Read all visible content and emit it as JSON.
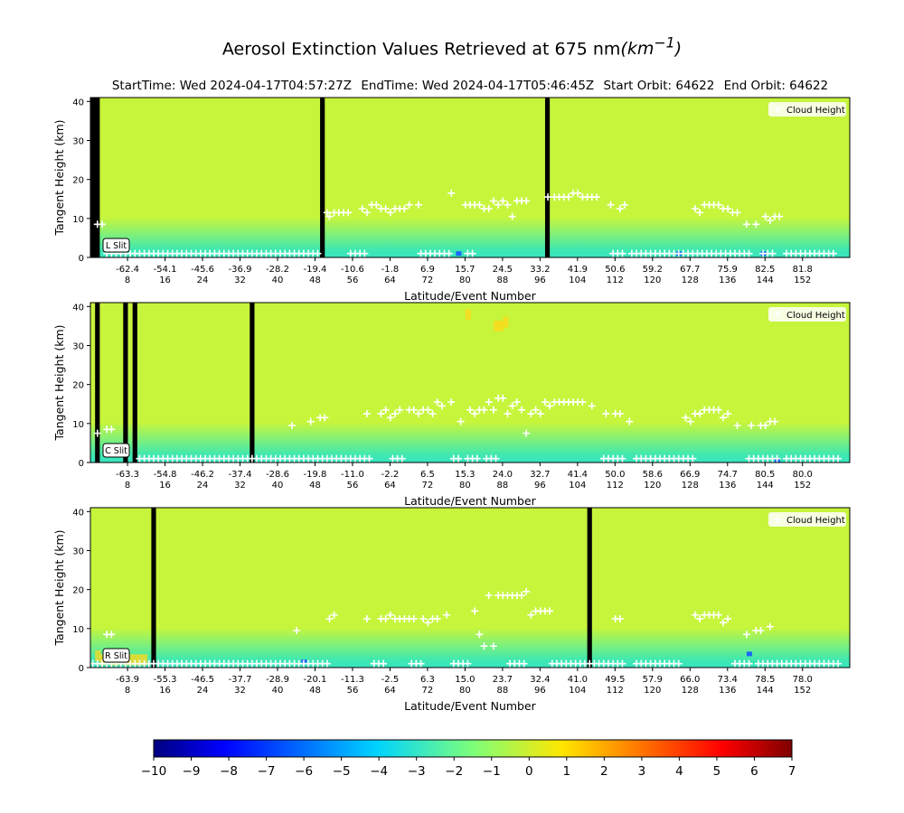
{
  "header": {
    "title": "Aerosol Extinction Values Retrieved at 675 nm",
    "title_unit": "(km",
    "title_unit_exp": "−1",
    "title_unit_close": ")",
    "start_time": "StartTime: Wed 2024-04-17T04:57:27Z",
    "end_time": "EndTime: Wed 2024-04-17T05:46:45Z",
    "start_orbit": "Start Orbit: 64622",
    "end_orbit": "End Orbit: 64622"
  },
  "colors": {
    "background_field": "#c6f53c",
    "lower_layer_light": "#7df07c",
    "lower_layer_mid": "#40e8b0",
    "dropout_bar": "#000000",
    "cloud_marker": "#ffffff",
    "low_blue_pixel": "#1a66ff",
    "warm_region": "#ffd81a"
  },
  "chart_data": [
    {
      "type": "heatmap",
      "panel_label": "L Slit",
      "ylabel": "Tangent Height (km)",
      "xlabel": "Latitude/Event Number",
      "ylim": [
        0,
        41
      ],
      "yticks": [
        "0",
        "10",
        "20",
        "30",
        "40"
      ],
      "event_range": [
        0,
        162
      ],
      "x_tick_events": [
        8,
        16,
        24,
        32,
        40,
        48,
        56,
        64,
        72,
        80,
        88,
        96,
        104,
        112,
        120,
        128,
        136,
        144,
        152
      ],
      "x_tick_lats": [
        "-62.4",
        "-54.1",
        "-45.6",
        "-36.9",
        "-28.2",
        "-19.4",
        "-10.6",
        "-1.8",
        "6.9",
        "15.7",
        "24.5",
        "33.2",
        "41.9",
        "50.6",
        "59.2",
        "67.7",
        "75.9",
        "82.5",
        "81.8"
      ],
      "legend": {
        "label": "Cloud Height",
        "position": "top-right"
      },
      "missing_events": [
        [
          0,
          2
        ],
        [
          49,
          50
        ],
        [
          97,
          98
        ]
      ],
      "cloud_heights_km": [
        [
          1.5,
          8.5
        ],
        [
          2.5,
          8.5
        ],
        [
          50.5,
          11.5
        ],
        [
          51,
          10.5
        ],
        [
          52,
          11.5
        ],
        [
          53,
          11.5
        ],
        [
          54,
          11.5
        ],
        [
          55,
          11.5
        ],
        [
          58,
          12.5
        ],
        [
          59,
          11.5
        ],
        [
          60,
          13.5
        ],
        [
          61,
          13.5
        ],
        [
          62,
          12.5
        ],
        [
          63,
          12.5
        ],
        [
          64,
          11.5
        ],
        [
          65,
          12.5
        ],
        [
          66,
          12.5
        ],
        [
          67,
          12.5
        ],
        [
          68,
          13.5
        ],
        [
          70,
          13.5
        ],
        [
          77,
          16.5
        ],
        [
          80,
          13.5
        ],
        [
          81,
          13.5
        ],
        [
          82,
          13.5
        ],
        [
          83,
          13.5
        ],
        [
          84,
          12.5
        ],
        [
          85,
          12.5
        ],
        [
          86,
          14.5
        ],
        [
          87,
          13.5
        ],
        [
          88,
          14.5
        ],
        [
          89,
          13.5
        ],
        [
          90,
          10.5
        ],
        [
          91,
          14.5
        ],
        [
          92,
          14.5
        ],
        [
          93,
          14.5
        ],
        [
          97.6,
          15.5
        ],
        [
          99,
          15.5
        ],
        [
          100,
          15.5
        ],
        [
          101,
          15.5
        ],
        [
          102,
          15.5
        ],
        [
          103,
          16.5
        ],
        [
          104,
          16.5
        ],
        [
          105,
          15.5
        ],
        [
          106,
          15.5
        ],
        [
          107,
          15.5
        ],
        [
          108,
          15.5
        ],
        [
          111,
          13.5
        ],
        [
          113,
          12.5
        ],
        [
          114,
          13.5
        ],
        [
          129,
          12.5
        ],
        [
          130,
          11.5
        ],
        [
          131,
          13.5
        ],
        [
          132,
          13.5
        ],
        [
          133,
          13.5
        ],
        [
          134,
          13.5
        ],
        [
          135,
          12.5
        ],
        [
          136,
          12.5
        ],
        [
          137,
          11.5
        ],
        [
          138,
          11.5
        ],
        [
          140,
          8.5
        ],
        [
          142,
          8.5
        ],
        [
          144,
          10.5
        ],
        [
          145,
          9.5
        ],
        [
          146,
          10.5
        ],
        [
          147,
          10.5
        ]
      ],
      "low_cloud_events": [
        [
          3,
          48
        ],
        [
          55,
          58
        ],
        [
          70,
          76
        ],
        [
          80,
          81
        ],
        [
          111,
          113
        ],
        [
          115,
          140
        ],
        [
          143,
          145
        ],
        [
          148,
          158
        ]
      ],
      "low_cloud_height_km": 1,
      "blue_pixels": [
        [
          78,
          1
        ],
        [
          125,
          1
        ],
        [
          143,
          1
        ]
      ],
      "warm_pixels": []
    },
    {
      "type": "heatmap",
      "panel_label": "C Slit",
      "ylabel": "Tangent Height (km)",
      "xlabel": "Latitude/Event Number",
      "ylim": [
        0,
        41
      ],
      "yticks": [
        "0",
        "10",
        "20",
        "30",
        "40"
      ],
      "event_range": [
        0,
        162
      ],
      "x_tick_events": [
        8,
        16,
        24,
        32,
        40,
        48,
        56,
        64,
        72,
        80,
        88,
        96,
        104,
        112,
        120,
        128,
        136,
        144,
        152
      ],
      "x_tick_lats": [
        "-63.3",
        "-54.8",
        "-46.2",
        "-37.4",
        "-28.6",
        "-19.8",
        "-11.0",
        "-2.2",
        "6.5",
        "15.3",
        "24.0",
        "32.7",
        "41.4",
        "50.0",
        "58.6",
        "66.9",
        "74.7",
        "80.5",
        "80.0"
      ],
      "legend": {
        "label": "Cloud Height",
        "position": "top-right"
      },
      "missing_events": [
        [
          1,
          2
        ],
        [
          7,
          8
        ],
        [
          9,
          10
        ],
        [
          34,
          35
        ]
      ],
      "cloud_heights_km": [
        [
          1.5,
          7.5
        ],
        [
          3.5,
          8.5
        ],
        [
          4.5,
          8.5
        ],
        [
          43,
          9.5
        ],
        [
          47,
          10.5
        ],
        [
          49,
          11.5
        ],
        [
          50,
          11.5
        ],
        [
          59,
          12.5
        ],
        [
          62,
          12.5
        ],
        [
          63,
          13.5
        ],
        [
          64,
          11.5
        ],
        [
          65,
          12.5
        ],
        [
          66,
          13.5
        ],
        [
          68,
          13.5
        ],
        [
          69,
          13.5
        ],
        [
          70,
          12.5
        ],
        [
          71,
          13.5
        ],
        [
          72,
          13.5
        ],
        [
          73,
          12.5
        ],
        [
          74,
          15.5
        ],
        [
          75,
          14.5
        ],
        [
          77,
          15.5
        ],
        [
          79,
          10.5
        ],
        [
          81,
          13.5
        ],
        [
          82,
          12.5
        ],
        [
          83,
          13.5
        ],
        [
          84,
          13.5
        ],
        [
          85,
          15.5
        ],
        [
          86,
          13.5
        ],
        [
          87,
          16.5
        ],
        [
          88,
          16.5
        ],
        [
          89,
          12.5
        ],
        [
          90,
          14.5
        ],
        [
          91,
          15.5
        ],
        [
          92,
          13.5
        ],
        [
          93,
          7.5
        ],
        [
          94,
          12.5
        ],
        [
          95,
          13.5
        ],
        [
          96,
          12.5
        ],
        [
          97,
          15.5
        ],
        [
          98,
          14.5
        ],
        [
          99,
          15.5
        ],
        [
          100,
          15.5
        ],
        [
          101,
          15.5
        ],
        [
          102,
          15.5
        ],
        [
          103,
          15.5
        ],
        [
          104,
          15.5
        ],
        [
          105,
          15.5
        ],
        [
          107,
          14.5
        ],
        [
          110,
          12.5
        ],
        [
          112,
          12.5
        ],
        [
          113,
          12.5
        ],
        [
          115,
          10.5
        ],
        [
          127,
          11.5
        ],
        [
          128,
          10.5
        ],
        [
          129,
          12.5
        ],
        [
          130,
          12.5
        ],
        [
          131,
          13.5
        ],
        [
          132,
          13.5
        ],
        [
          133,
          13.5
        ],
        [
          134,
          13.5
        ],
        [
          135,
          11.5
        ],
        [
          136,
          12.5
        ],
        [
          138,
          9.5
        ],
        [
          141,
          9.5
        ],
        [
          143,
          9.5
        ],
        [
          144,
          9.5
        ],
        [
          145,
          10.5
        ],
        [
          146,
          10.5
        ]
      ],
      "low_cloud_events": [
        [
          10,
          34
        ],
        [
          35,
          59
        ],
        [
          64,
          66
        ],
        [
          77,
          78
        ],
        [
          80,
          82
        ],
        [
          84,
          86
        ],
        [
          109,
          113
        ],
        [
          116,
          128
        ],
        [
          140,
          146
        ],
        [
          148,
          159
        ]
      ],
      "low_cloud_height_km": 1,
      "blue_pixels": [
        [
          146,
          0.5
        ]
      ],
      "warm_pixels": [
        [
          86,
          35
        ],
        [
          87,
          35
        ],
        [
          88,
          36
        ],
        [
          80,
          38
        ]
      ]
    },
    {
      "type": "heatmap",
      "panel_label": "R Slit",
      "ylabel": "Tangent Height (km)",
      "xlabel": "Latitude/Event Number",
      "ylim": [
        0,
        41
      ],
      "yticks": [
        "0",
        "10",
        "20",
        "30",
        "40"
      ],
      "event_range": [
        0,
        162
      ],
      "x_tick_events": [
        8,
        16,
        24,
        32,
        40,
        48,
        56,
        64,
        72,
        80,
        88,
        96,
        104,
        112,
        120,
        128,
        136,
        144,
        152
      ],
      "x_tick_lats": [
        "-63.9",
        "-55.3",
        "-46.5",
        "-37.7",
        "-28.9",
        "-20.1",
        "-11.3",
        "-2.5",
        "6.3",
        "15.0",
        "23.7",
        "32.4",
        "41.0",
        "49.5",
        "57.9",
        "66.0",
        "73.4",
        "78.5",
        "78.0"
      ],
      "legend": {
        "label": "Cloud Height",
        "position": "top-right"
      },
      "missing_events": [
        [
          13,
          14
        ],
        [
          106,
          107
        ]
      ],
      "cloud_heights_km": [
        [
          3.5,
          8.5
        ],
        [
          4.5,
          8.5
        ],
        [
          44,
          9.5
        ],
        [
          51,
          12.5
        ],
        [
          52,
          13.5
        ],
        [
          59,
          12.5
        ],
        [
          62,
          12.5
        ],
        [
          63,
          12.5
        ],
        [
          64,
          13.5
        ],
        [
          65,
          12.5
        ],
        [
          66,
          12.5
        ],
        [
          67,
          12.5
        ],
        [
          68,
          12.5
        ],
        [
          69,
          12.5
        ],
        [
          71,
          12.5
        ],
        [
          72,
          11.5
        ],
        [
          73,
          12.5
        ],
        [
          74,
          12.5
        ],
        [
          76,
          13.5
        ],
        [
          82,
          14.5
        ],
        [
          83,
          8.5
        ],
        [
          84,
          5.5
        ],
        [
          85,
          18.5
        ],
        [
          86,
          5.5
        ],
        [
          87,
          18.5
        ],
        [
          88,
          18.5
        ],
        [
          89,
          18.5
        ],
        [
          90,
          18.5
        ],
        [
          91,
          18.5
        ],
        [
          92,
          18.5
        ],
        [
          93,
          19.5
        ],
        [
          94,
          13.5
        ],
        [
          95,
          14.5
        ],
        [
          96,
          14.5
        ],
        [
          97,
          14.5
        ],
        [
          98,
          14.5
        ],
        [
          112,
          12.5
        ],
        [
          113,
          12.5
        ],
        [
          129,
          13.5
        ],
        [
          130,
          12.5
        ],
        [
          131,
          13.5
        ],
        [
          132,
          13.5
        ],
        [
          133,
          13.5
        ],
        [
          134,
          13.5
        ],
        [
          135,
          11.5
        ],
        [
          136,
          12.5
        ],
        [
          140,
          8.5
        ],
        [
          142,
          9.5
        ],
        [
          143,
          9.5
        ],
        [
          145,
          10.5
        ]
      ],
      "low_cloud_events": [
        [
          0,
          4
        ],
        [
          5,
          13
        ],
        [
          14,
          44
        ],
        [
          45,
          50
        ],
        [
          60,
          62
        ],
        [
          68,
          70
        ],
        [
          77,
          80
        ],
        [
          89,
          92
        ],
        [
          98,
          113
        ],
        [
          116,
          125
        ],
        [
          137,
          140
        ],
        [
          142,
          159
        ]
      ],
      "low_cloud_height_km": 1,
      "blue_pixels": [
        [
          45,
          1.5
        ],
        [
          140,
          3.5
        ]
      ],
      "warm_pixels": [
        [
          1,
          3
        ],
        [
          2,
          2
        ],
        [
          3,
          3
        ],
        [
          4,
          2
        ],
        [
          5,
          2
        ],
        [
          6,
          3
        ],
        [
          7,
          2
        ],
        [
          8,
          2
        ],
        [
          9,
          2
        ],
        [
          10,
          2
        ],
        [
          11,
          2
        ]
      ]
    }
  ],
  "colorbar": {
    "ticks": [
      "−10",
      "−9",
      "−8",
      "−7",
      "−6",
      "−5",
      "−4",
      "−3",
      "−2",
      "−1",
      "0",
      "1",
      "2",
      "3",
      "4",
      "5",
      "6",
      "7"
    ],
    "min": -10,
    "max": 7,
    "colormap": "jet"
  }
}
